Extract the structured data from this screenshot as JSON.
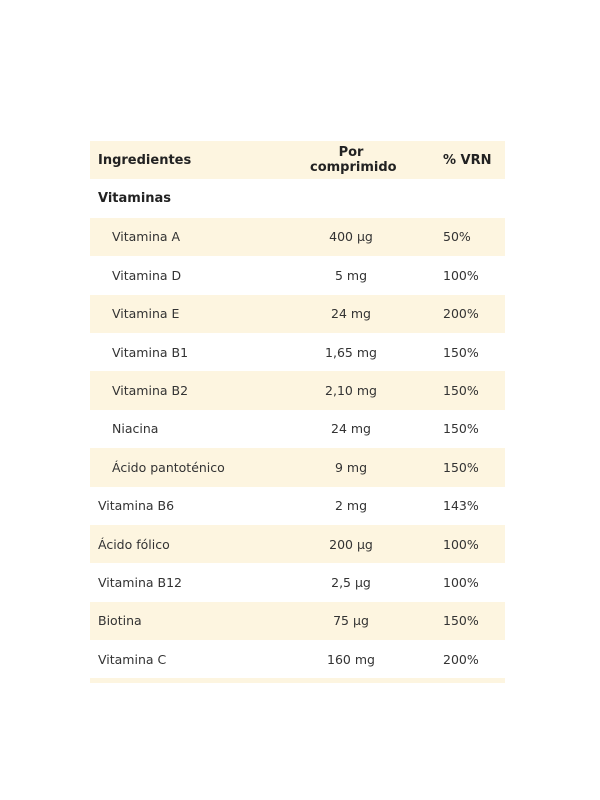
{
  "header": {
    "ingredient": "Ingredientes",
    "amount": "Por comprimido",
    "vrn": "% VRN"
  },
  "section": "Vitaminas",
  "rows": [
    {
      "name": "Vitamina A",
      "amount": "400 µg",
      "vrn": "50%",
      "indent": true
    },
    {
      "name": "Vitamina D",
      "amount": "5 mg",
      "vrn": "100%",
      "indent": true
    },
    {
      "name": "Vitamina E",
      "amount": "24 mg",
      "vrn": "200%",
      "indent": true
    },
    {
      "name": "Vitamina B1",
      "amount": "1,65 mg",
      "vrn": "150%",
      "indent": true
    },
    {
      "name": "Vitamina B2",
      "amount": "2,10 mg",
      "vrn": "150%",
      "indent": true
    },
    {
      "name": "Niacina",
      "amount": "24 mg",
      "vrn": "150%",
      "indent": true
    },
    {
      "name": "Ácido pantoténico",
      "amount": "9 mg",
      "vrn": "150%",
      "indent": true
    },
    {
      "name": "Vitamina B6",
      "amount": "2 mg",
      "vrn": "143%",
      "indent": false
    },
    {
      "name": "Ácido fólico",
      "amount": "200 µg",
      "vrn": "100%",
      "indent": false
    },
    {
      "name": "Vitamina B12",
      "amount": "2,5 µg",
      "vrn": "100%",
      "indent": false
    },
    {
      "name": "Biotina",
      "amount": "75 µg",
      "vrn": "150%",
      "indent": false
    },
    {
      "name": "Vitamina C",
      "amount": "160 mg",
      "vrn": "200%",
      "indent": false
    }
  ],
  "colors": {
    "shade": "#fdf5e0"
  }
}
